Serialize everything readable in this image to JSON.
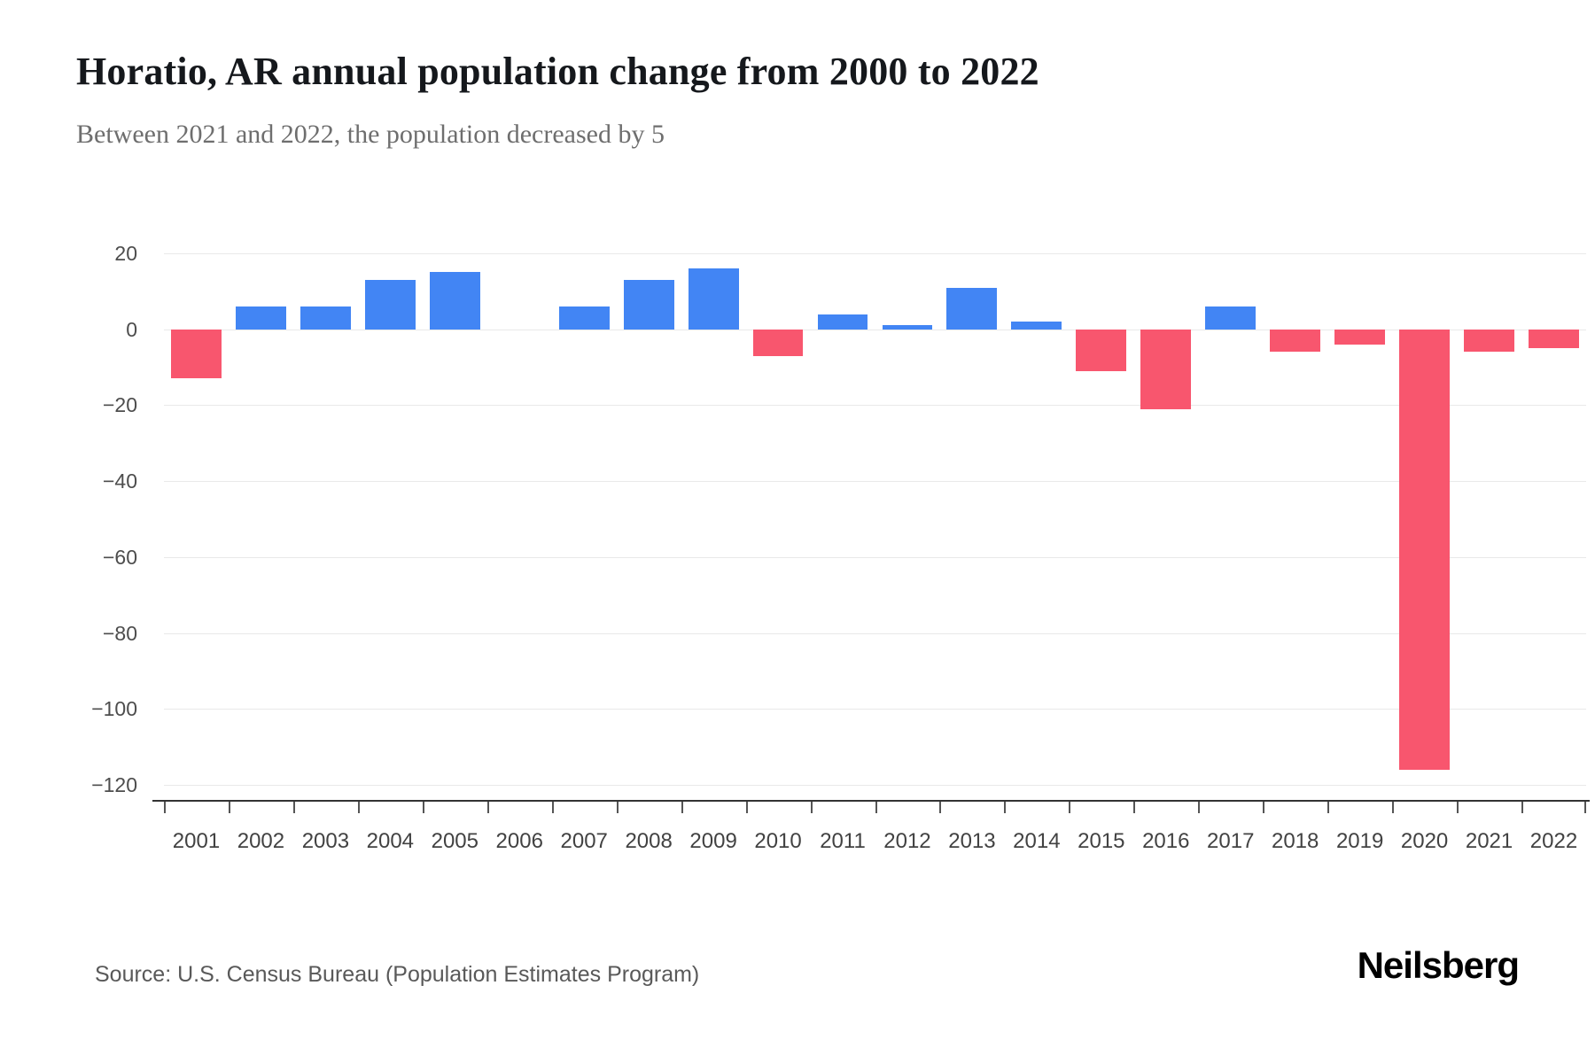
{
  "header": {
    "title": "Horatio, AR annual population change from 2000 to 2022",
    "subtitle": "Between 2021 and 2022, the population decreased by 5"
  },
  "chart_data": {
    "type": "bar",
    "title": "Horatio, AR annual population change from 2000 to 2022",
    "subtitle": "Between 2021 and 2022, the population decreased by 5",
    "categories": [
      "2001",
      "2002",
      "2003",
      "2004",
      "2005",
      "2006",
      "2007",
      "2008",
      "2009",
      "2010",
      "2011",
      "2012",
      "2013",
      "2014",
      "2015",
      "2016",
      "2017",
      "2018",
      "2019",
      "2020",
      "2021",
      "2022"
    ],
    "values": [
      -13,
      6,
      6,
      13,
      15,
      0,
      6,
      13,
      16,
      -7,
      4,
      1,
      11,
      2,
      -11,
      -21,
      6,
      -6,
      -4,
      -116,
      -6,
      -5
    ],
    "xlabel": "",
    "ylabel": "",
    "ylim": [
      -120,
      20
    ],
    "yticks": [
      20,
      0,
      -20,
      -40,
      -60,
      -80,
      -100,
      -120
    ],
    "ytick_labels": [
      "20",
      "0",
      "−20",
      "−40",
      "−60",
      "−80",
      "−100",
      "−120"
    ],
    "grid": "horizontal",
    "legend": "none",
    "colors": {
      "positive": "#4285F4",
      "negative": "#F8566E"
    }
  },
  "footer": {
    "source": "Source: U.S. Census Bureau (Population Estimates Program)",
    "brand": "Neilsberg"
  }
}
